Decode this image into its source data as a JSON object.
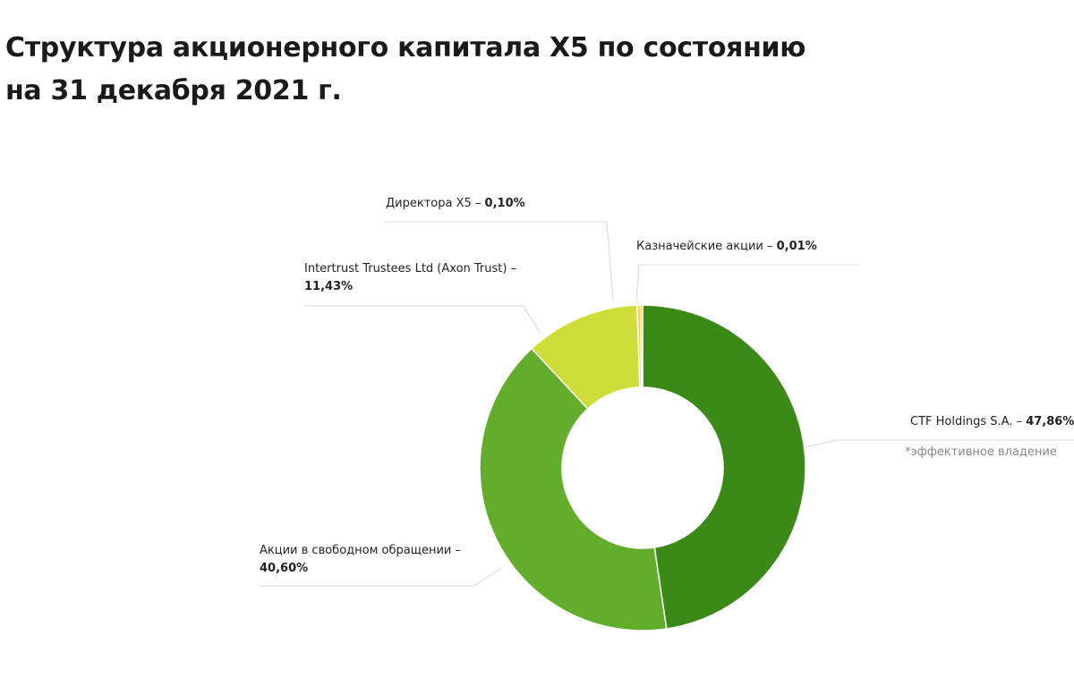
{
  "title": {
    "line1": "Структура акционерного капитала X5 по состоянию",
    "line2": "на 31 декабря 2021 г."
  },
  "chart_data": {
    "type": "pie",
    "title": "Структура акционерного капитала X5 по состоянию на 31 декабря 2021 г.",
    "slices": [
      {
        "name": "CTF Holdings S.A.",
        "value": 47.86,
        "label": "47,86%*",
        "color": "#3b8a17"
      },
      {
        "name": "Акции в свободном обращении",
        "value": 40.6,
        "label": "40,60%",
        "color": "#62ae2c"
      },
      {
        "name": "Intertrust Trustees Ltd (Axon Trust)",
        "value": 11.43,
        "label": "11,43%",
        "color": "#cfdd3a"
      },
      {
        "name": "Директора X5",
        "value": 0.1,
        "label": "0,10%",
        "color": "#fad52e"
      },
      {
        "name": "Казначейские акции",
        "value": 0.01,
        "label": "0,01%",
        "color": "#f49a1a"
      }
    ],
    "footnote": "*эффективное владение"
  },
  "labels": {
    "ctf_name": "CTF Holdings S.A. –",
    "ctf_value": "47,86%*",
    "free_name": "Акции в свободном обращении –",
    "free_value": "40,60%",
    "intertrust_name": "Intertrust Trustees Ltd (Axon Trust) –",
    "intertrust_value": "11,43%",
    "directors_name": "Директора X5 –",
    "directors_value": "0,10%",
    "treasury_name": "Казначейские акции –",
    "treasury_value": "0,01%"
  }
}
